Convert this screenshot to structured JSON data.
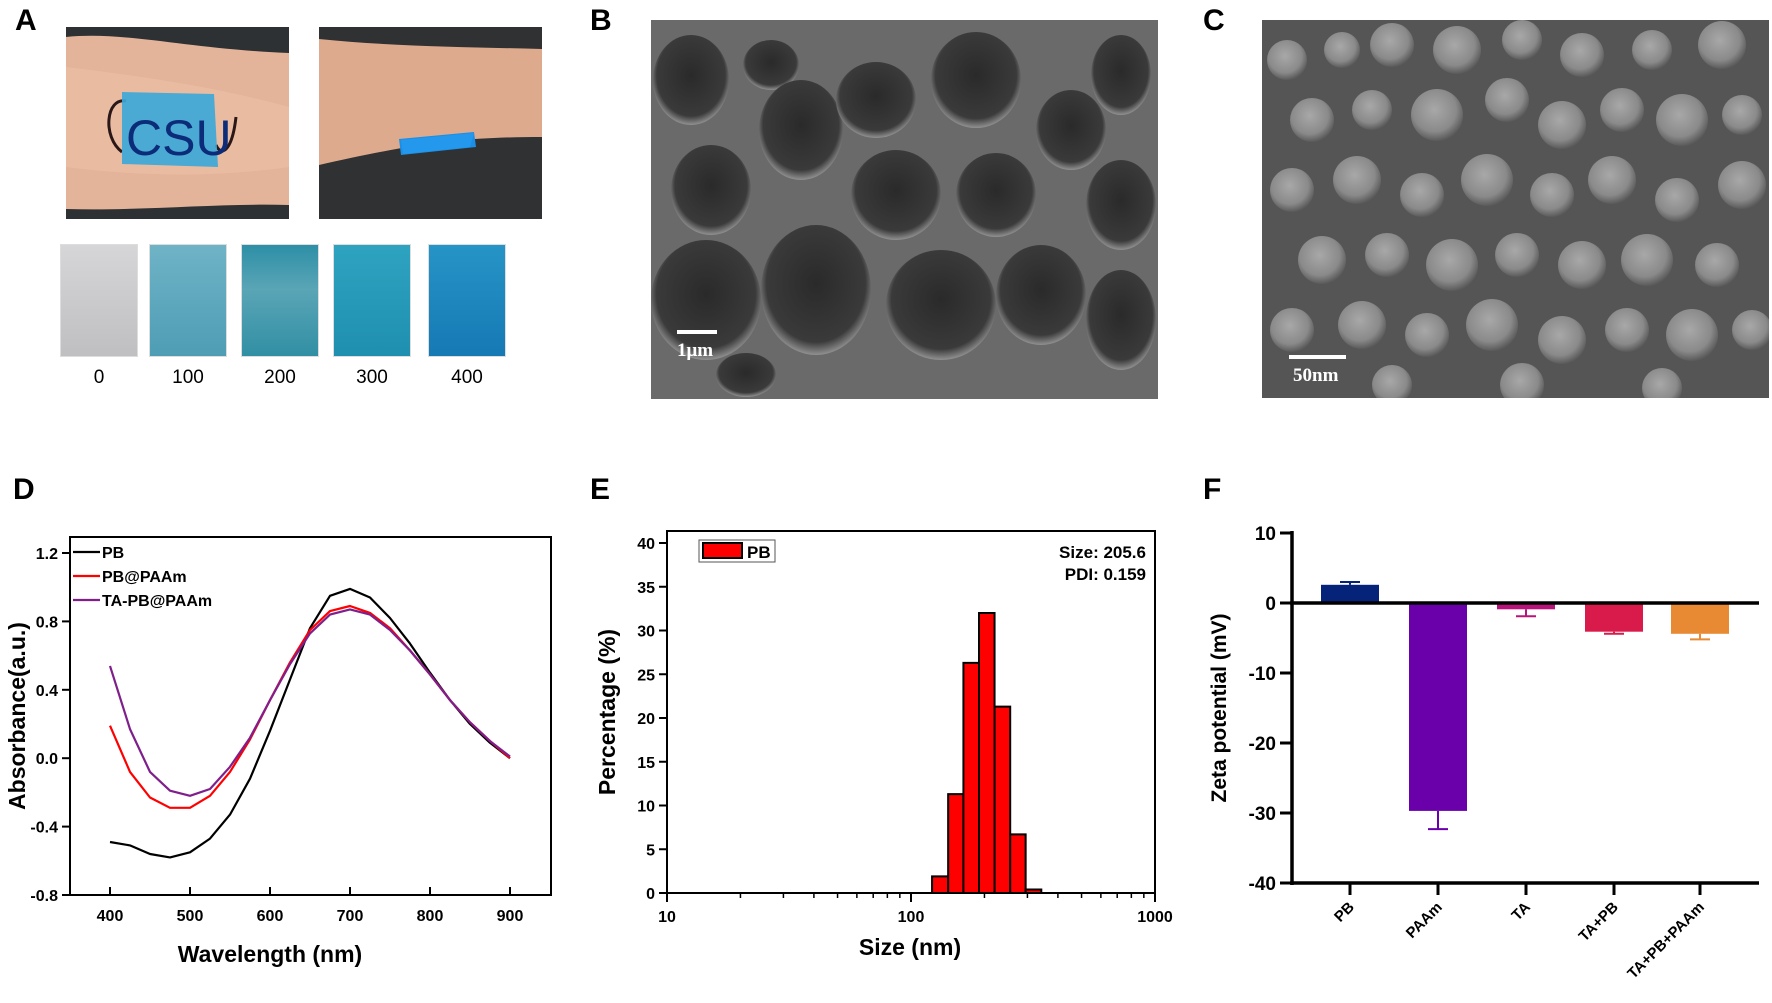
{
  "panels": {
    "A": {
      "label": "A",
      "swatch_labels": [
        "0",
        "100",
        "200",
        "300",
        "400"
      ],
      "swatch_colors": [
        "#c9c9cb",
        "#5aa6bd",
        "#3f97ab",
        "#2a99b8",
        "#1d88bf"
      ],
      "patch_text": "CSU"
    },
    "B": {
      "label": "B",
      "scale_label": "1μm"
    },
    "C": {
      "label": "C",
      "scale_label": "50nm"
    },
    "D": {
      "label": "D"
    },
    "E": {
      "label": "E",
      "annotation_size": "Size: 205.6",
      "annotation_pdi": "PDI: 0.159"
    },
    "F": {
      "label": "F"
    }
  },
  "chart_data": [
    {
      "panel": "D",
      "type": "line",
      "title": "",
      "xlabel": "Wavelength (nm)",
      "ylabel": "Absorbance(a.u.)",
      "xlim": [
        350,
        950
      ],
      "ylim": [
        -0.8,
        1.3
      ],
      "xticks": [
        400,
        500,
        600,
        700,
        800,
        900
      ],
      "yticks": [
        -0.8,
        -0.4,
        0.0,
        0.4,
        0.8,
        1.2
      ],
      "legend_position": "upper left",
      "x": [
        400,
        425,
        450,
        475,
        500,
        525,
        550,
        575,
        600,
        625,
        650,
        675,
        700,
        725,
        750,
        775,
        800,
        825,
        850,
        875,
        900
      ],
      "series": [
        {
          "name": "PB",
          "color": "#000000",
          "values": [
            -0.49,
            -0.51,
            -0.56,
            -0.58,
            -0.55,
            -0.47,
            -0.33,
            -0.12,
            0.16,
            0.46,
            0.76,
            0.95,
            0.99,
            0.94,
            0.82,
            0.67,
            0.5,
            0.34,
            0.2,
            0.09,
            0.0
          ]
        },
        {
          "name": "PB@PAAm",
          "color": "#ff0000",
          "values": [
            0.19,
            -0.08,
            -0.23,
            -0.29,
            -0.29,
            -0.22,
            -0.08,
            0.11,
            0.34,
            0.56,
            0.75,
            0.86,
            0.89,
            0.85,
            0.76,
            0.63,
            0.49,
            0.34,
            0.21,
            0.1,
            0.0
          ]
        },
        {
          "name": "TA-PB@PAAm",
          "color": "#7f1f8c",
          "values": [
            0.54,
            0.17,
            -0.08,
            -0.19,
            -0.22,
            -0.18,
            -0.05,
            0.12,
            0.34,
            0.55,
            0.73,
            0.84,
            0.87,
            0.84,
            0.75,
            0.63,
            0.49,
            0.34,
            0.21,
            0.1,
            0.01
          ]
        }
      ]
    },
    {
      "panel": "E",
      "type": "bar",
      "title": "",
      "xlabel": "Size (nm)",
      "ylabel": "Percentage (%)",
      "xscale": "log",
      "xlim": [
        10,
        1000
      ],
      "ylim": [
        0,
        42
      ],
      "xticks": [
        10,
        100,
        1000
      ],
      "yticks": [
        0,
        5,
        10,
        15,
        20,
        25,
        30,
        35,
        40
      ],
      "legend": [
        "PB"
      ],
      "legend_position": "upper left",
      "bins": [
        [
          122,
          142
        ],
        [
          142,
          164
        ],
        [
          164,
          190
        ],
        [
          190,
          220
        ],
        [
          220,
          255
        ],
        [
          255,
          295
        ],
        [
          295,
          342
        ]
      ],
      "categories": [
        "132",
        "153",
        "177",
        "205",
        "237",
        "274",
        "318"
      ],
      "series": [
        {
          "name": "PB",
          "color": "#ff0000",
          "values": [
            1.9,
            11.3,
            26.3,
            32.0,
            21.3,
            6.7,
            0.4
          ]
        }
      ],
      "annotations": [
        "Size: 205.6",
        "PDI: 0.159"
      ]
    },
    {
      "panel": "F",
      "type": "bar",
      "title": "",
      "xlabel": "",
      "ylabel": "Zeta potential (mV)",
      "ylim": [
        -40,
        10
      ],
      "yticks": [
        -40,
        -30,
        -20,
        -10,
        0,
        10
      ],
      "categories": [
        "PB",
        "PAAm",
        "TA",
        "TA+PB",
        "TA+PB+PAAm"
      ],
      "values": [
        2.6,
        -29.7,
        -0.9,
        -4.1,
        -4.4
      ],
      "errors": [
        0.4,
        2.6,
        1.0,
        0.3,
        0.8
      ],
      "colors": [
        "#06237a",
        "#6a00aa",
        "#b8137a",
        "#d81b4a",
        "#e88a34"
      ]
    }
  ]
}
